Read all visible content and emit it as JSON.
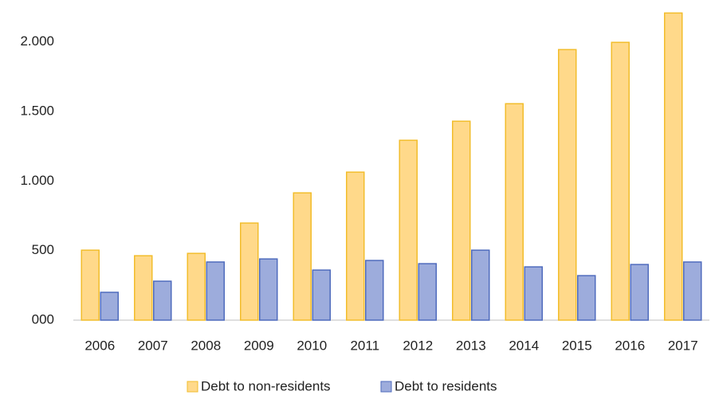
{
  "chart_data": {
    "type": "bar",
    "categories": [
      "2006",
      "2007",
      "2008",
      "2009",
      "2010",
      "2011",
      "2012",
      "2013",
      "2014",
      "2015",
      "2016",
      "2017"
    ],
    "series": [
      {
        "name": "Debt to non-residents",
        "color": "#ffd98a",
        "stroke": "#f2bd2c",
        "values": [
          503,
          463,
          480,
          698,
          915,
          1064,
          1293,
          1430,
          1556,
          1945,
          1997,
          2208
        ]
      },
      {
        "name": "Debt to residents",
        "color": "#9dacdc",
        "stroke": "#4f6bbd",
        "values": [
          200,
          280,
          418,
          440,
          360,
          429,
          406,
          503,
          383,
          320,
          400,
          418
        ]
      }
    ],
    "ylim": [
      0,
      2250
    ],
    "yticks": [
      {
        "value": 0,
        "label": "000"
      },
      {
        "value": 500,
        "label": "500"
      },
      {
        "value": 1000,
        "label": "1.000"
      },
      {
        "value": 1500,
        "label": "1.500"
      },
      {
        "value": 2000,
        "label": "2.000"
      }
    ],
    "grid": false,
    "legend": "bottom"
  }
}
